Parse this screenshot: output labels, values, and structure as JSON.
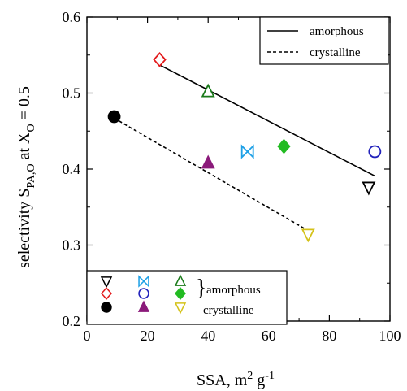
{
  "chart_data": {
    "type": "scatter",
    "xlabel": "SSA, m2 g-1",
    "ylabel": "selectivity SPA,O at XO = 0.5",
    "xlim": [
      0,
      100
    ],
    "ylim": [
      0.2,
      0.6
    ],
    "x_ticks": [
      0,
      20,
      40,
      60,
      80,
      100
    ],
    "y_ticks": [
      0.2,
      0.3,
      0.4,
      0.5,
      0.6
    ],
    "x_tick_labels": [
      "0",
      "20",
      "40",
      "60",
      "80",
      "100"
    ],
    "y_tick_labels": [
      "0.2",
      "0.3",
      "0.4",
      "0.5",
      "0.6"
    ],
    "grid": false,
    "series": [
      {
        "marker": "triangle-down-open",
        "color": "#000000",
        "group": "amorphous",
        "x": [
          93
        ],
        "y": [
          0.376
        ]
      },
      {
        "marker": "bowtie-open",
        "color": "#1ea0e6",
        "group": "amorphous",
        "x": [
          53
        ],
        "y": [
          0.423
        ]
      },
      {
        "marker": "triangle-up-open",
        "color": "#1a7a1a",
        "group": "amorphous",
        "x": [
          40
        ],
        "y": [
          0.502
        ]
      },
      {
        "marker": "diamond-open",
        "color": "#e31a1c",
        "group": "amorphous",
        "x": [
          24
        ],
        "y": [
          0.544
        ]
      },
      {
        "marker": "circle-open",
        "color": "#2222bb",
        "group": "amorphous",
        "x": [
          95
        ],
        "y": [
          0.423
        ]
      },
      {
        "marker": "diamond-filled",
        "color": "#22bb22",
        "group": "amorphous",
        "x": [
          65
        ],
        "y": [
          0.43
        ]
      },
      {
        "marker": "circle-filled",
        "color": "#000000",
        "group": "crystalline",
        "x": [
          9
        ],
        "y": [
          0.469
        ]
      },
      {
        "marker": "triangle-up-filled",
        "color": "#8b1a7a",
        "group": "crystalline",
        "x": [
          40
        ],
        "y": [
          0.408
        ]
      },
      {
        "marker": "triangle-down-open",
        "color": "#d4c21a",
        "group": "crystalline",
        "x": [
          73
        ],
        "y": [
          0.314
        ]
      }
    ],
    "fit_lines": [
      {
        "name": "amorphous",
        "style": "solid",
        "x": [
          24,
          95
        ],
        "y": [
          0.537,
          0.391
        ]
      },
      {
        "name": "crystalline",
        "style": "dashed",
        "x": [
          9,
          73
        ],
        "y": [
          0.467,
          0.319
        ]
      }
    ],
    "legend_lines": {
      "position": "top-right",
      "entries": [
        "amorphous",
        "crystalline"
      ]
    },
    "legend_markers": {
      "position": "bottom-left",
      "rows": [
        {
          "markers": [
            "triangle-down-open|#000000",
            "bowtie-open|#1ea0e6",
            "triangle-up-open|#1a7a1a"
          ],
          "label": ""
        },
        {
          "markers": [
            "diamond-open|#e31a1c",
            "circle-open|#2222bb",
            "diamond-filled|#22bb22"
          ],
          "label": "}amorphous"
        },
        {
          "markers": [
            "circle-filled|#000000",
            "triangle-up-filled|#8b1a7a",
            "triangle-down-open|#d4c21a"
          ],
          "label": "crystalline"
        }
      ]
    }
  }
}
